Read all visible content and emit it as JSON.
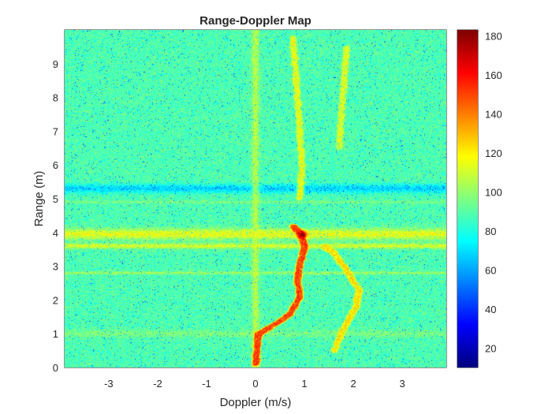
{
  "chart_data": {
    "type": "heatmap",
    "title": "Range-Doppler Map",
    "xlabel": "Doppler (m/s)",
    "ylabel": "Range (m)",
    "xlim": [
      -3.9,
      3.9
    ],
    "ylim": [
      0,
      10
    ],
    "x_ticks": [
      -3,
      -2,
      -1,
      0,
      1,
      2,
      3
    ],
    "y_ticks": [
      0,
      1,
      2,
      3,
      4,
      5,
      6,
      7,
      8,
      9
    ],
    "colorbar": {
      "colormap": "jet",
      "limits": [
        10,
        183
      ],
      "ticks": [
        20,
        40,
        60,
        80,
        100,
        120,
        140,
        160,
        180
      ]
    },
    "background_level": 88,
    "features": [
      {
        "kind": "range_band",
        "range": 5.3,
        "width": 0.35,
        "level": 68
      },
      {
        "kind": "range_band",
        "range": 4.9,
        "width": 0.12,
        "level": 96
      },
      {
        "kind": "range_band",
        "range": 3.95,
        "width": 0.45,
        "level": 115
      },
      {
        "kind": "range_band",
        "range": 3.6,
        "width": 0.22,
        "level": 112
      },
      {
        "kind": "range_band",
        "range": 2.8,
        "width": 0.12,
        "level": 102
      },
      {
        "kind": "range_band",
        "range": 1.0,
        "width": 0.3,
        "level": 96
      },
      {
        "kind": "doppler_band",
        "doppler": 0.0,
        "width": 0.22,
        "level": 110
      },
      {
        "kind": "track",
        "points": [
          [
            0.0,
            0.1
          ],
          [
            0.02,
            0.6
          ],
          [
            0.05,
            1.0
          ],
          [
            0.3,
            1.2
          ],
          [
            0.7,
            1.6
          ],
          [
            0.9,
            2.1
          ],
          [
            0.85,
            2.6
          ],
          [
            0.9,
            3.1
          ],
          [
            1.0,
            3.6
          ],
          [
            0.9,
            4.0
          ],
          [
            0.75,
            4.2
          ]
        ],
        "level": 150
      },
      {
        "kind": "track",
        "points": [
          [
            1.6,
            0.5
          ],
          [
            1.8,
            1.2
          ],
          [
            2.05,
            1.8
          ],
          [
            2.1,
            2.3
          ],
          [
            1.9,
            2.8
          ],
          [
            1.6,
            3.4
          ],
          [
            1.4,
            3.6
          ]
        ],
        "level": 122
      },
      {
        "kind": "track",
        "points": [
          [
            0.9,
            5.0
          ],
          [
            0.95,
            6.0
          ],
          [
            0.9,
            7.0
          ],
          [
            0.85,
            8.0
          ],
          [
            0.8,
            9.0
          ],
          [
            0.75,
            9.8
          ]
        ],
        "level": 115
      },
      {
        "kind": "track",
        "points": [
          [
            1.7,
            6.5
          ],
          [
            1.75,
            7.5
          ],
          [
            1.8,
            8.5
          ],
          [
            1.85,
            9.5
          ]
        ],
        "level": 112
      },
      {
        "kind": "peak",
        "doppler": 0.95,
        "range": 3.95,
        "level": 183
      }
    ]
  }
}
